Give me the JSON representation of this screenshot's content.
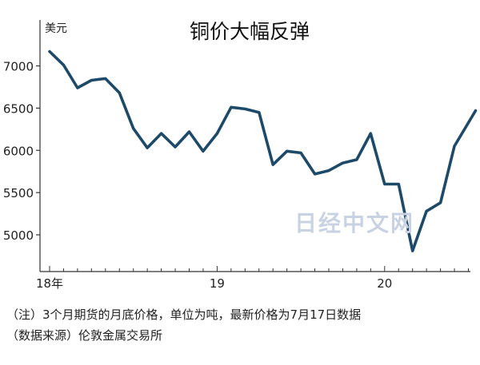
{
  "chart_data": {
    "type": "line",
    "title": "铜价大幅反弹",
    "ylabel": "美元",
    "ylim": [
      4700,
      7350
    ],
    "yticks": [
      5000,
      5500,
      6000,
      6500,
      7000
    ],
    "ytick_labels": [
      "5000",
      "5500",
      "6000",
      "6500",
      "7000"
    ],
    "xticks": [
      {
        "month_index": 0,
        "label": "18年"
      },
      {
        "month_index": 12,
        "label": "19"
      },
      {
        "month_index": 24,
        "label": "20"
      }
    ],
    "x_start": "2018-01",
    "series": [
      {
        "color": "#1e4a6a",
        "points": [
          {
            "x": "2018-01",
            "y": 7170
          },
          {
            "x": "2018-02",
            "y": 7010
          },
          {
            "x": "2018-03",
            "y": 6740
          },
          {
            "x": "2018-04",
            "y": 6830
          },
          {
            "x": "2018-05",
            "y": 6850
          },
          {
            "x": "2018-06",
            "y": 6680
          },
          {
            "x": "2018-07",
            "y": 6260
          },
          {
            "x": "2018-08",
            "y": 6030
          },
          {
            "x": "2018-09",
            "y": 6200
          },
          {
            "x": "2018-10",
            "y": 6040
          },
          {
            "x": "2018-11",
            "y": 6220
          },
          {
            "x": "2018-12",
            "y": 5990
          },
          {
            "x": "2019-01",
            "y": 6200
          },
          {
            "x": "2019-02",
            "y": 6510
          },
          {
            "x": "2019-03",
            "y": 6490
          },
          {
            "x": "2019-04",
            "y": 6450
          },
          {
            "x": "2019-05",
            "y": 5830
          },
          {
            "x": "2019-06",
            "y": 5990
          },
          {
            "x": "2019-07",
            "y": 5970
          },
          {
            "x": "2019-08",
            "y": 5720
          },
          {
            "x": "2019-09",
            "y": 5760
          },
          {
            "x": "2019-10",
            "y": 5850
          },
          {
            "x": "2019-11",
            "y": 5890
          },
          {
            "x": "2019-12",
            "y": 6200
          },
          {
            "x": "2020-01",
            "y": 5600
          },
          {
            "x": "2020-02",
            "y": 5600
          },
          {
            "x": "2020-03",
            "y": 4810
          },
          {
            "x": "2020-04",
            "y": 5280
          },
          {
            "x": "2020-05",
            "y": 5380
          },
          {
            "x": "2020-06",
            "y": 6050
          },
          {
            "x": "2020-07-17",
            "y": 6470
          }
        ]
      }
    ],
    "grid": false,
    "legend": "none"
  },
  "notes": {
    "line1": "（注）3个月期货的月底价格，单位为吨，最新价格为7月17日数据",
    "line2": "（数据来源）伦敦金属交易所"
  },
  "watermark": "日经中文网"
}
